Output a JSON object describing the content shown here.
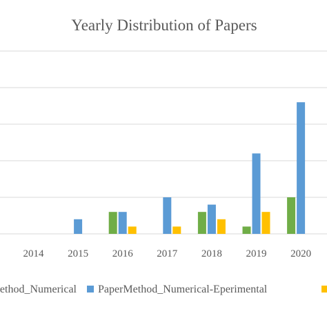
{
  "chart_data": {
    "type": "bar",
    "title": "Yearly Distribution of Papers",
    "xlabel": "",
    "ylabel": "",
    "categories": [
      "2014",
      "2015",
      "2016",
      "2017",
      "2018",
      "2019",
      "2020"
    ],
    "series": [
      {
        "name": "PaperMethod_Numerical",
        "color": "#70ad47",
        "values": [
          0,
          0,
          3,
          0,
          3,
          1,
          5
        ]
      },
      {
        "name": "PaperMethod_Numerical-Eperimental",
        "color": "#5b9bd5",
        "values": [
          0,
          2,
          3,
          5,
          4,
          11,
          18
        ]
      },
      {
        "name": "",
        "color": "#ffc000",
        "values": [
          0,
          0,
          1,
          1,
          2,
          3,
          0
        ]
      }
    ],
    "ylim": [
      0,
      25
    ],
    "y_gridline_step": 5,
    "grid": true,
    "legend_position": "bottom"
  }
}
